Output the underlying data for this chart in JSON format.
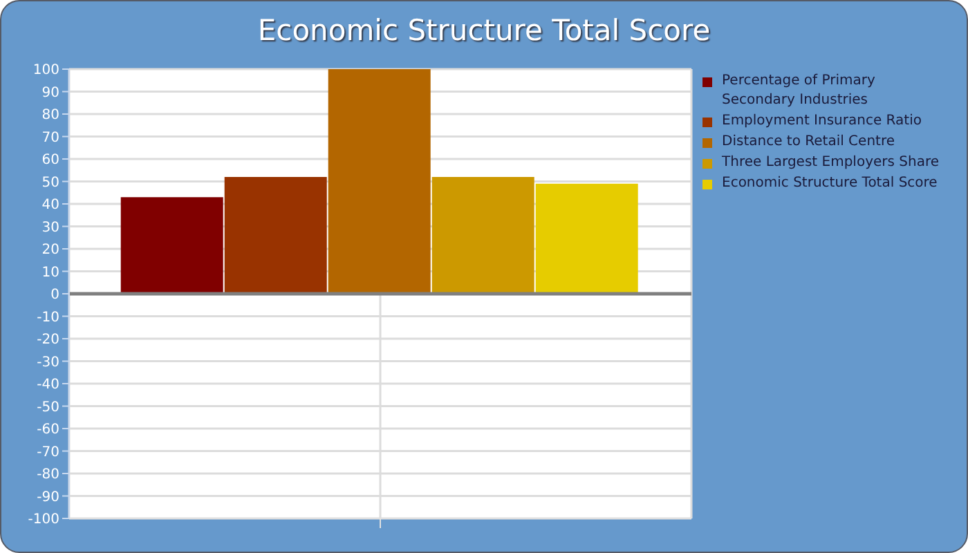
{
  "chart_data": {
    "type": "bar",
    "title": "Economic Structure Total Score",
    "categories": [
      null
    ],
    "series": [
      {
        "name": "Percentage of Primary Secondary Industries",
        "color": "#800000",
        "values": [
          43
        ]
      },
      {
        "name": "Employment Insurance Ratio",
        "color": "#993300",
        "values": [
          52
        ]
      },
      {
        "name": "Distance to Retail Centre",
        "color": "#b36600",
        "values": [
          100
        ]
      },
      {
        "name": "Three Largest Employers Share",
        "color": "#cc9900",
        "values": [
          52
        ]
      },
      {
        "name": "Economic Structure Total Score",
        "color": "#e6cc00",
        "values": [
          49
        ]
      }
    ],
    "ylim": [
      -100,
      100
    ],
    "yticks": [
      -100,
      -90,
      -80,
      -70,
      -60,
      -50,
      -40,
      -30,
      -20,
      -10,
      0,
      10,
      20,
      30,
      40,
      50,
      60,
      70,
      80,
      90,
      100
    ],
    "grid": true,
    "legend": "top right",
    "ref_lines": [
      {
        "axis": "y",
        "value": 0,
        "color": "#808080"
      }
    ]
  }
}
